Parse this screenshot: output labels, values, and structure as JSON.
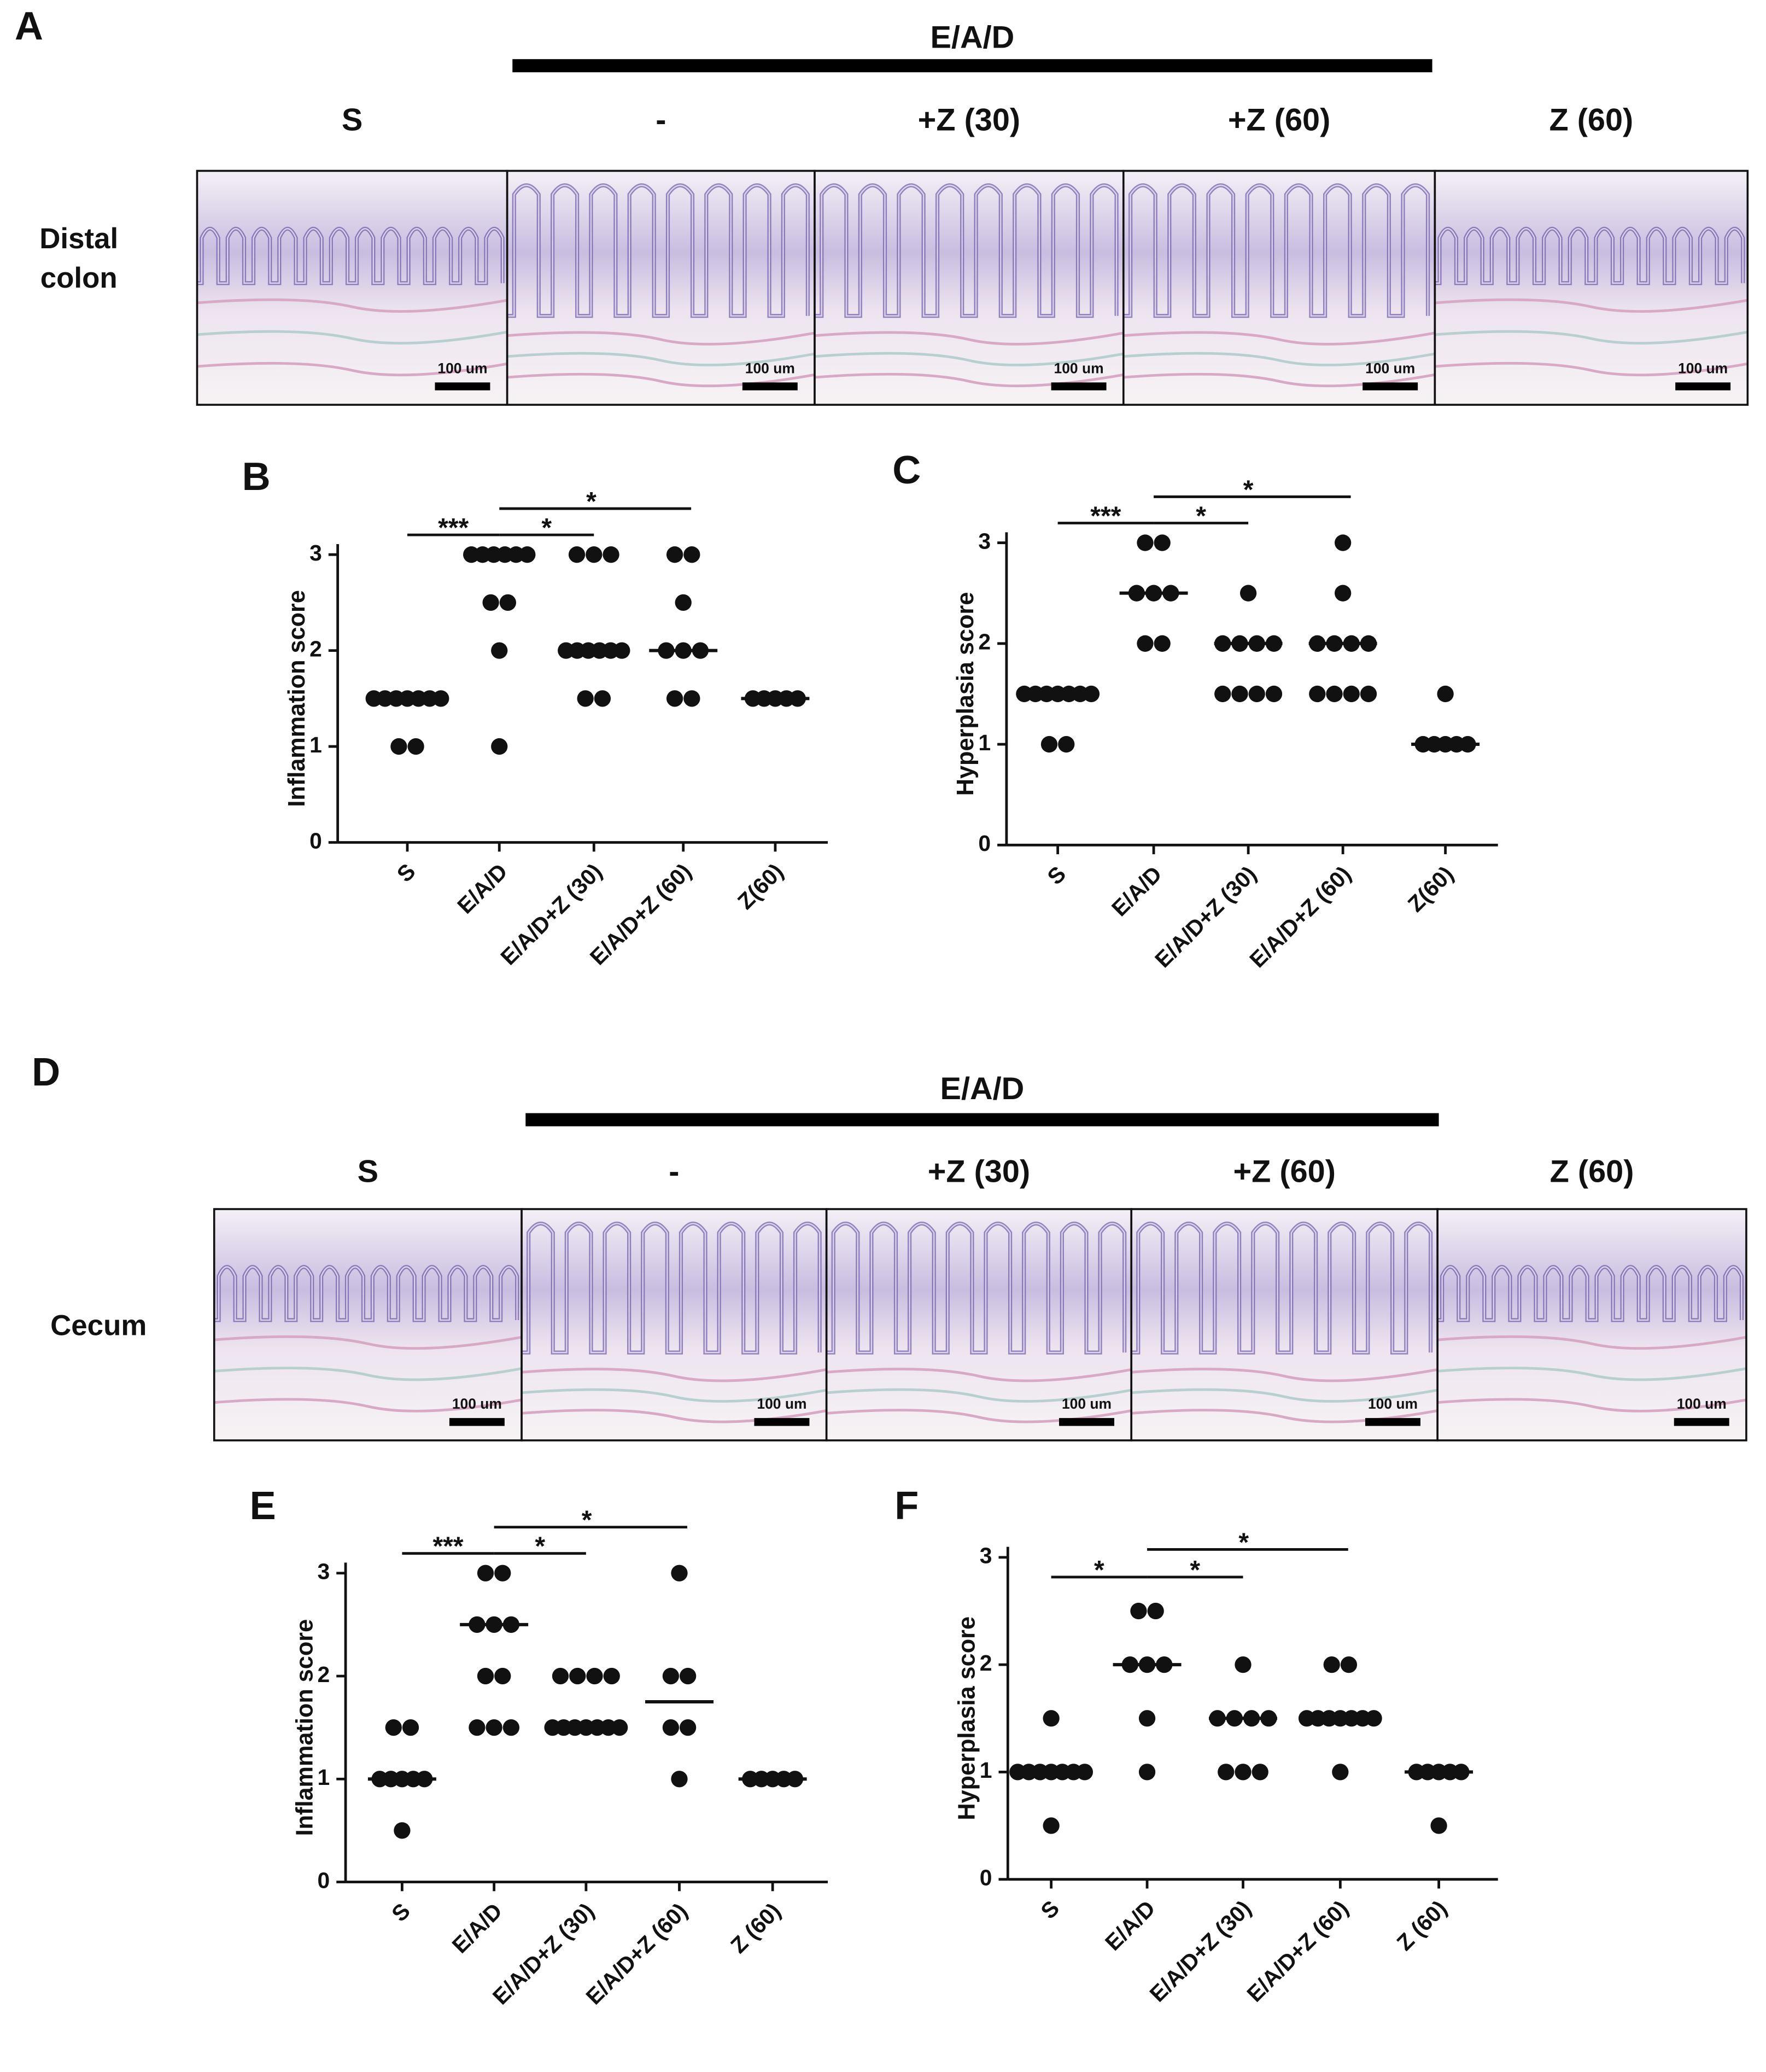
{
  "figure": {
    "panels": [
      {
        "label": "A",
        "header": "E/A/D",
        "columns": [
          "S",
          "-",
          "+Z (30)",
          "+Z (60)",
          "Z (60)"
        ],
        "row_label": [
          "Distal",
          "colon"
        ],
        "scale_bar": "100 um"
      },
      {
        "label": "D",
        "header": "E/A/D",
        "columns": [
          "S",
          "-",
          "+Z (30)",
          "+Z (60)",
          "Z (60)"
        ],
        "row_label": [
          "Cecum"
        ],
        "scale_bar": "100 um"
      }
    ]
  },
  "chart_data": [
    {
      "type": "strip",
      "panel": "B",
      "ylabel": "Inflammation score",
      "color": "#111111",
      "categories": [
        "S",
        "E/A/D",
        "E/A/D+Z (30)",
        "E/A/D+Z (60)",
        "Z(60)"
      ],
      "values": [
        [
          1,
          1,
          1.5,
          1.5,
          1.5,
          1.5,
          1.5,
          1.5,
          1.5
        ],
        [
          1,
          2,
          2.5,
          2.5,
          3,
          3,
          3,
          3,
          3,
          3
        ],
        [
          1.5,
          1.5,
          2,
          2,
          2,
          2,
          2,
          2,
          3,
          3,
          3
        ],
        [
          1.5,
          1.5,
          2,
          2,
          2,
          2.5,
          3,
          3
        ],
        [
          1.5,
          1.5,
          1.5,
          1.5,
          1.5
        ]
      ],
      "medians": [
        1.5,
        3,
        2,
        2,
        1.5
      ],
      "ylim": [
        0,
        3
      ],
      "yticks": [
        0,
        1,
        2,
        3
      ],
      "annotations": [
        "***",
        "*",
        "*"
      ]
    },
    {
      "type": "strip",
      "panel": "C",
      "ylabel": "Hyperplasia score",
      "color": "#111111",
      "categories": [
        "S",
        "E/A/D",
        "E/A/D+Z (30)",
        "E/A/D+Z (60)",
        "Z(60)"
      ],
      "values": [
        [
          1,
          1,
          1.5,
          1.5,
          1.5,
          1.5,
          1.5,
          1.5,
          1.5
        ],
        [
          2,
          2,
          2.5,
          2.5,
          2.5,
          3,
          3
        ],
        [
          1.5,
          1.5,
          1.5,
          1.5,
          2,
          2,
          2,
          2,
          2.5
        ],
        [
          1.5,
          1.5,
          1.5,
          1.5,
          2,
          2,
          2,
          2,
          2.5,
          3
        ],
        [
          1,
          1,
          1,
          1,
          1,
          1.5
        ]
      ],
      "medians": [
        1.5,
        2.5,
        2,
        2,
        1
      ],
      "ylim": [
        0,
        3
      ],
      "yticks": [
        0,
        1,
        2,
        3
      ],
      "annotations": [
        "***",
        "*",
        "*"
      ]
    },
    {
      "type": "strip",
      "panel": "E",
      "ylabel": "Inflammation score",
      "color": "#111111",
      "categories": [
        "S",
        "E/A/D",
        "E/A/D+Z (30)",
        "E/A/D+Z (60)",
        "Z (60)"
      ],
      "values": [
        [
          0.5,
          1,
          1,
          1,
          1,
          1,
          1.5,
          1.5
        ],
        [
          1.5,
          1.5,
          1.5,
          2,
          2,
          2.5,
          2.5,
          2.5,
          3,
          3
        ],
        [
          1.5,
          1.5,
          1.5,
          1.5,
          1.5,
          1.5,
          1.5,
          2,
          2,
          2,
          2
        ],
        [
          1,
          1.5,
          1.5,
          2,
          2,
          3
        ],
        [
          1,
          1,
          1,
          1,
          1
        ]
      ],
      "medians": [
        1,
        2.5,
        1.5,
        1.75,
        1
      ],
      "ylim": [
        0,
        3
      ],
      "yticks": [
        0,
        1,
        2,
        3
      ],
      "annotations": [
        "***",
        "*",
        "*"
      ]
    },
    {
      "type": "strip",
      "panel": "F",
      "ylabel": "Hyperplasia score",
      "color": "#111111",
      "categories": [
        "S",
        "E/A/D",
        "E/A/D+Z (30)",
        "E/A/D+Z (60)",
        "Z (60)"
      ],
      "values": [
        [
          0.5,
          1,
          1,
          1,
          1,
          1,
          1,
          1,
          1.5
        ],
        [
          1,
          1.5,
          2,
          2,
          2,
          2.5,
          2.5
        ],
        [
          1,
          1,
          1,
          1.5,
          1.5,
          1.5,
          1.5,
          2
        ],
        [
          1,
          1.5,
          1.5,
          1.5,
          1.5,
          1.5,
          1.5,
          1.5,
          2,
          2
        ],
        [
          0.5,
          1,
          1,
          1,
          1,
          1
        ]
      ],
      "medians": [
        1,
        2,
        1.5,
        1.5,
        1
      ],
      "ylim": [
        0,
        3
      ],
      "yticks": [
        0,
        1,
        2,
        3
      ],
      "annotations": [
        "*",
        "*",
        "*"
      ]
    }
  ]
}
